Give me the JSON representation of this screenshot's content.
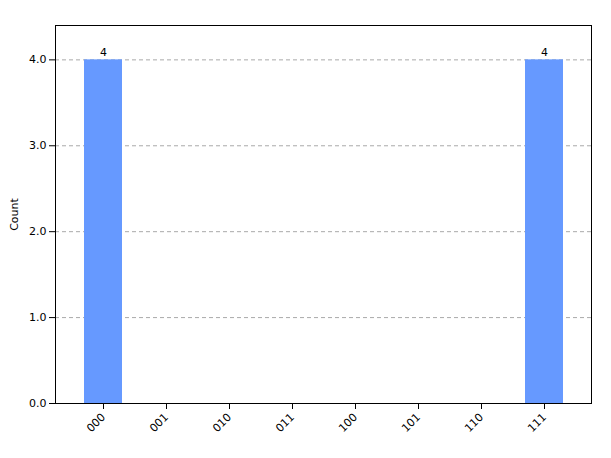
{
  "chart_data": {
    "type": "bar",
    "categories": [
      "000",
      "001",
      "010",
      "011",
      "100",
      "101",
      "110",
      "111"
    ],
    "values": [
      4,
      0,
      0,
      0,
      0,
      0,
      0,
      4
    ],
    "value_labels": [
      "4",
      null,
      null,
      null,
      null,
      null,
      null,
      "4"
    ],
    "data_labels": true,
    "color": "#6699ff",
    "ylabel": "Count",
    "ylim": [
      0,
      4.4
    ],
    "yticks": [
      0,
      1,
      2,
      3,
      4
    ],
    "grid": true
  }
}
